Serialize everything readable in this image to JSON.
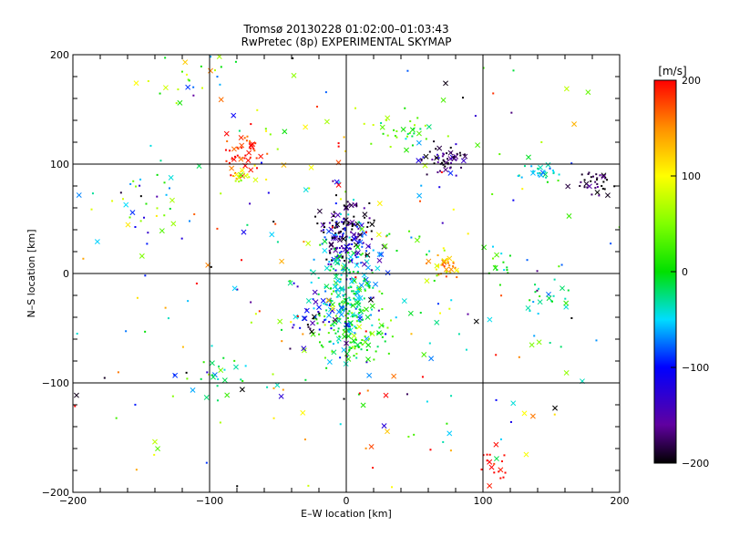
{
  "chart_data": {
    "type": "scatter",
    "title": "Tromsø 20130228 01:02:00–01:03:43",
    "subtitle": "RwPretec (8p) EXPERIMENTAL SKYMAP",
    "xlabel": "E–W location [km]",
    "ylabel": "N–S location [km]",
    "xlim": [
      -200,
      200
    ],
    "ylim": [
      -200,
      200
    ],
    "x_ticks": [
      -200,
      -100,
      0,
      100,
      200
    ],
    "y_ticks": [
      -200,
      -100,
      0,
      100,
      200
    ],
    "x_tick_labels": [
      "−200",
      "−100",
      "0",
      "100",
      "200"
    ],
    "y_tick_labels": [
      "−200",
      "−100",
      "0",
      "100",
      "200"
    ],
    "grid": true,
    "grid_values": [
      -100,
      0,
      100
    ],
    "colorbar": {
      "label": "[m/s]",
      "range": [
        -200,
        200
      ],
      "ticks": [
        200,
        100,
        0,
        -100,
        -200
      ],
      "tick_labels": [
        "200",
        "100",
        "0",
        "−100",
        "−200"
      ],
      "placement": "right",
      "colormap": "rainbow (black → purple → blue → cyan → green → yellow → red)"
    },
    "markers": [
      "dot",
      "x"
    ],
    "clusters": [
      {
        "x": 0,
        "y": 30,
        "sx": 10,
        "sy": 14,
        "v": -140,
        "sv": 50,
        "n": 140
      },
      {
        "x": -2,
        "y": 50,
        "sx": 10,
        "sy": 8,
        "v": -200,
        "sv": 10,
        "n": 35
      },
      {
        "x": 0,
        "y": -20,
        "sx": 10,
        "sy": 25,
        "v": -30,
        "sv": 30,
        "n": 220
      },
      {
        "x": 5,
        "y": -55,
        "sx": 14,
        "sy": 10,
        "v": 10,
        "sv": 30,
        "n": 80
      },
      {
        "x": 72,
        "y": 105,
        "sx": 8,
        "sy": 6,
        "v": -180,
        "sv": 30,
        "n": 55
      },
      {
        "x": 186,
        "y": 82,
        "sx": 9,
        "sy": 6,
        "v": -190,
        "sv": 20,
        "n": 40
      },
      {
        "x": 74,
        "y": 8,
        "sx": 6,
        "sy": 6,
        "v": 130,
        "sv": 40,
        "n": 35
      },
      {
        "x": -75,
        "y": 112,
        "sx": 8,
        "sy": 12,
        "v": 190,
        "sv": 20,
        "n": 45
      },
      {
        "x": -75,
        "y": 90,
        "sx": 6,
        "sy": 5,
        "v": 110,
        "sv": 30,
        "n": 15
      },
      {
        "x": 140,
        "y": 92,
        "sx": 10,
        "sy": 5,
        "v": -40,
        "sv": 30,
        "n": 30
      },
      {
        "x": 45,
        "y": 130,
        "sx": 12,
        "sy": 8,
        "v": 10,
        "sv": 40,
        "n": 35
      },
      {
        "x": 110,
        "y": 10,
        "sx": 6,
        "sy": 8,
        "v": 20,
        "sv": 30,
        "n": 15
      },
      {
        "x": 148,
        "y": -25,
        "sx": 10,
        "sy": 8,
        "v": -20,
        "sv": 30,
        "n": 20
      },
      {
        "x": -22,
        "y": -42,
        "sx": 12,
        "sy": 10,
        "v": -100,
        "sv": 70,
        "n": 45
      },
      {
        "x": -150,
        "y": 60,
        "sx": 18,
        "sy": 18,
        "v": -20,
        "sv": 80,
        "n": 30
      },
      {
        "x": -100,
        "y": -90,
        "sx": 15,
        "sy": 12,
        "v": -20,
        "sv": 60,
        "n": 25
      },
      {
        "x": 110,
        "y": -170,
        "sx": 6,
        "sy": 12,
        "v": 200,
        "sv": 10,
        "n": 18
      },
      {
        "x": -110,
        "y": 180,
        "sx": 20,
        "sy": 12,
        "v": 40,
        "sv": 60,
        "n": 25
      },
      {
        "x": 0,
        "y": 0,
        "sx": 110,
        "sy": 110,
        "v": 20,
        "sv": 130,
        "n": 320
      }
    ]
  }
}
